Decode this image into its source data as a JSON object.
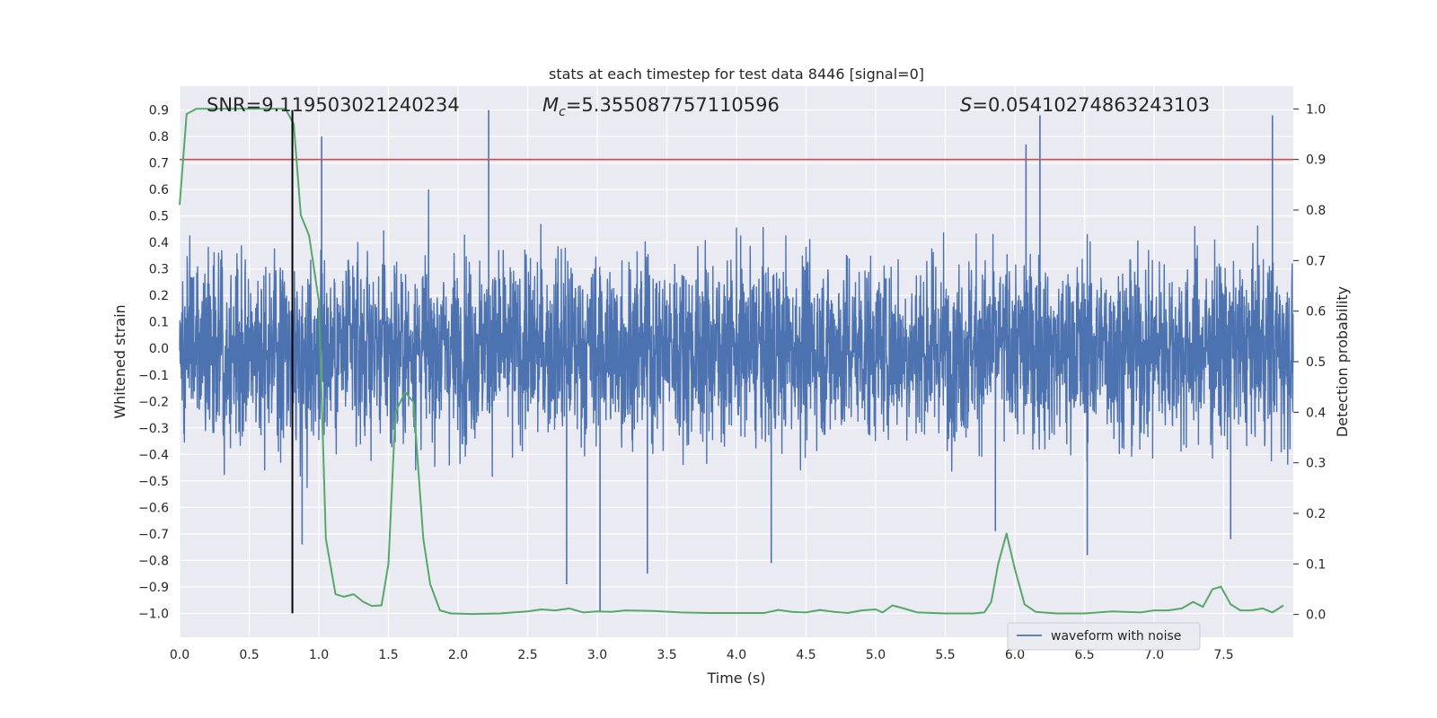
{
  "chart_data": {
    "type": "line",
    "title": "stats at each timestep for test data 8446 [signal=0]",
    "xlabel": "Time (s)",
    "ylabel": "Whitened strain",
    "ylabel_right": "Detection probability",
    "xlim": [
      0.0,
      8.0
    ],
    "ylim": [
      -1.09,
      0.99
    ],
    "ylim_right": [
      -0.045,
      1.045
    ],
    "x_ticks": [
      "0.0",
      "0.5",
      "1.0",
      "1.5",
      "2.0",
      "2.5",
      "3.0",
      "3.5",
      "4.0",
      "4.5",
      "5.0",
      "5.5",
      "6.0",
      "6.5",
      "7.0",
      "7.5"
    ],
    "y_ticks": [
      "0.9",
      "0.8",
      "0.7",
      "0.6",
      "0.5",
      "0.4",
      "0.3",
      "0.2",
      "0.1",
      "0.0",
      "−0.1",
      "−0.2",
      "−0.3",
      "−0.4",
      "−0.5",
      "−0.6",
      "−0.7",
      "−0.8",
      "−0.9",
      "−1.0"
    ],
    "y_ticks_right": [
      "1.0",
      "0.9",
      "0.8",
      "0.7",
      "0.6",
      "0.5",
      "0.4",
      "0.3",
      "0.2",
      "0.1",
      "0.0"
    ],
    "grid": true,
    "legend_position": "bottom-right",
    "stats": {
      "snr": "SNR=9.119503021240234",
      "mc_symbol": "M",
      "mc_sub": "c",
      "mc_value": "=5.355087757110596",
      "s_symbol": "S",
      "s_value": "=0.05410274863243103"
    },
    "series": [
      {
        "name": "waveform with noise",
        "axis": "left",
        "color": "#4c72b0",
        "kind": "noise",
        "sample_rate_hz": 2048,
        "spike_peaks": [
          {
            "x": 2.22,
            "y": 0.9
          },
          {
            "x": 6.18,
            "y": 0.88
          },
          {
            "x": 7.85,
            "y": 0.88
          },
          {
            "x": 1.02,
            "y": 0.8
          },
          {
            "x": 6.08,
            "y": 0.77
          },
          {
            "x": 2.78,
            "y": -0.89
          },
          {
            "x": 3.02,
            "y": -0.99
          },
          {
            "x": 3.36,
            "y": -0.85
          },
          {
            "x": 4.25,
            "y": -0.81
          },
          {
            "x": 6.52,
            "y": -0.78
          },
          {
            "x": 5.86,
            "y": -0.69
          },
          {
            "x": 7.55,
            "y": -0.72
          },
          {
            "x": 0.88,
            "y": -0.74
          }
        ]
      },
      {
        "name": "detection probability",
        "axis": "right",
        "color": "#55a868",
        "x": [
          0.0,
          0.05,
          0.12,
          0.2,
          0.35,
          0.5,
          0.6,
          0.7,
          0.76,
          0.82,
          0.87,
          0.93,
          1.0,
          1.05,
          1.12,
          1.18,
          1.25,
          1.32,
          1.38,
          1.45,
          1.5,
          1.55,
          1.62,
          1.68,
          1.75,
          1.8,
          1.87,
          1.95,
          2.1,
          2.3,
          2.5,
          2.6,
          2.7,
          2.8,
          2.9,
          3.0,
          3.1,
          3.2,
          3.4,
          3.6,
          3.8,
          4.0,
          4.2,
          4.3,
          4.4,
          4.5,
          4.6,
          4.7,
          4.8,
          4.9,
          5.0,
          5.05,
          5.12,
          5.2,
          5.3,
          5.5,
          5.7,
          5.78,
          5.83,
          5.88,
          5.94,
          6.0,
          6.07,
          6.15,
          6.3,
          6.5,
          6.7,
          6.9,
          7.0,
          7.1,
          7.2,
          7.28,
          7.35,
          7.42,
          7.48,
          7.55,
          7.62,
          7.7,
          7.78,
          7.85,
          7.93
        ],
        "y": [
          0.81,
          0.99,
          1.0,
          1.0,
          1.0,
          1.0,
          1.0,
          1.0,
          1.0,
          0.97,
          0.79,
          0.75,
          0.62,
          0.15,
          0.04,
          0.035,
          0.04,
          0.025,
          0.017,
          0.018,
          0.1,
          0.4,
          0.44,
          0.42,
          0.15,
          0.06,
          0.008,
          0.002,
          0.001,
          0.002,
          0.006,
          0.01,
          0.008,
          0.012,
          0.004,
          0.006,
          0.005,
          0.008,
          0.007,
          0.004,
          0.003,
          0.003,
          0.003,
          0.009,
          0.005,
          0.004,
          0.009,
          0.005,
          0.003,
          0.008,
          0.01,
          0.004,
          0.018,
          0.012,
          0.004,
          0.002,
          0.002,
          0.004,
          0.025,
          0.1,
          0.16,
          0.09,
          0.02,
          0.005,
          0.002,
          0.002,
          0.006,
          0.004,
          0.008,
          0.008,
          0.012,
          0.025,
          0.015,
          0.05,
          0.055,
          0.02,
          0.008,
          0.008,
          0.012,
          0.004,
          0.018
        ]
      },
      {
        "name": "threshold",
        "axis": "right",
        "color": "#c44e52",
        "kind": "hline",
        "y": 0.9
      },
      {
        "name": "detection time",
        "axis": "left",
        "color": "#000000",
        "kind": "vline",
        "x": 0.81,
        "y_range": [
          -1.0,
          0.9
        ]
      }
    ],
    "legend": [
      "waveform with noise"
    ]
  }
}
